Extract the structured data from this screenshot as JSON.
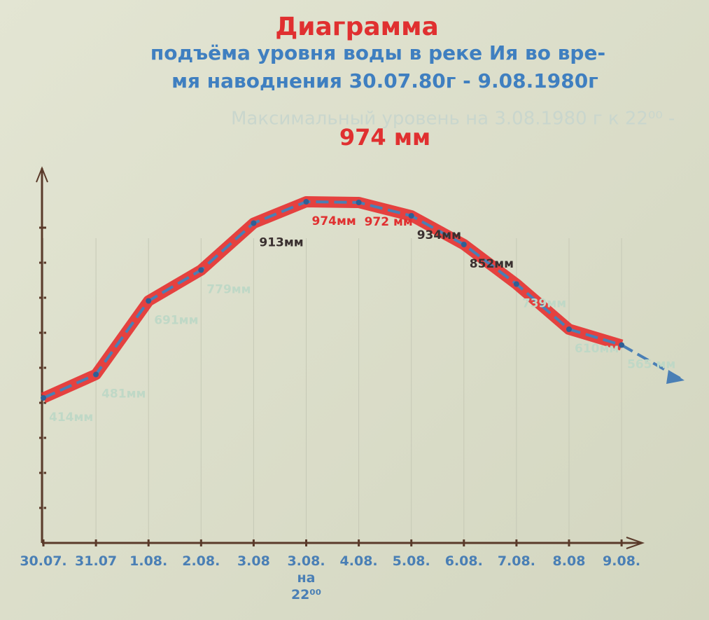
{
  "chart_data": {
    "type": "line",
    "title": "Диаграмма",
    "subtitle": [
      "подъёма уровня воды в реке Ия во вре-",
      "мя наводнения 30.07.80г - 9.08.1980г"
    ],
    "annotation": "Максимальный уровень на 3.08.1980 г к 22⁰⁰ -",
    "annotation_value": "974 мм",
    "categories": [
      "30.07.",
      "31.07",
      "1.08.",
      "2.08.",
      "3.08",
      "3.08. на 22⁰⁰",
      "4.08.",
      "5.08.",
      "6.08.",
      "7.08.",
      "8.08",
      "9.08."
    ],
    "values": [
      414,
      481,
      691,
      779,
      913,
      974,
      972,
      934,
      852,
      739,
      610,
      565
    ],
    "value_labels": [
      "414мм",
      "481мм",
      "691мм",
      "779мм",
      "913мм",
      "974мм",
      "972 мм",
      "934мм",
      "852мм",
      "739мм",
      "610мм",
      "565 мм"
    ],
    "label_colors": [
      "#bfd8c6",
      "#bfd8c6",
      "#bfd8c6",
      "#bfd8c6",
      "#3a3030",
      "#e03030",
      "#e03030",
      "#3a3030",
      "#3a3030",
      "#bfd8c6",
      "#bfd8c6",
      "#bfd8c6"
    ],
    "color": "#e53030",
    "line_color": "#4a7fb5",
    "ylim": [
      0,
      1070
    ],
    "yticks": [
      100,
      200,
      300,
      400,
      500,
      600,
      700,
      800,
      900
    ],
    "grid": true
  }
}
